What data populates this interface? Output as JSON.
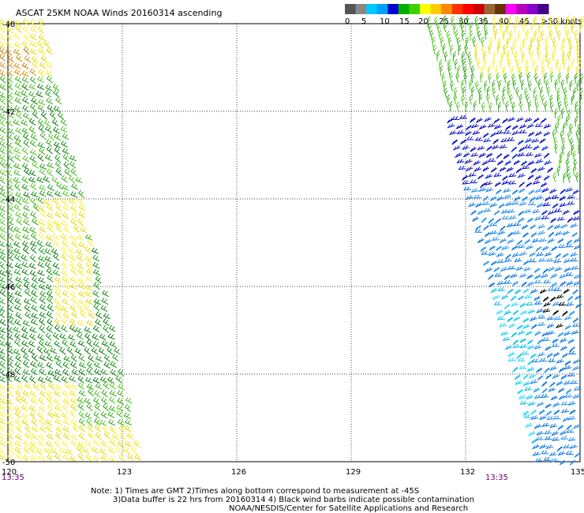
{
  "title": "ASCAT 25KM NOAA Winds 20160314 ascending",
  "legend": {
    "labels": [
      "0",
      "5",
      "10",
      "15",
      "20",
      "25",
      "30",
      "35",
      "40",
      "45",
      ">50 knots"
    ],
    "colors": [
      "#555555",
      "#888888",
      "#00c8ff",
      "#00a0ff",
      "#0000d0",
      "#00b000",
      "#40d000",
      "#ffff00",
      "#ffcc00",
      "#ff8800",
      "#ff3300",
      "#ff0000",
      "#cc0000",
      "#996633",
      "#663300",
      "#ff00ff",
      "#bb00bb",
      "#8800cc",
      "#440088"
    ]
  },
  "axes": {
    "lat_labels": [
      "-40",
      "-42",
      "-44",
      "-46",
      "-48",
      "-50"
    ],
    "lon_labels": [
      "120",
      "123",
      "126",
      "129",
      "132",
      "135"
    ],
    "lat_range": [
      -50,
      -40
    ],
    "lon_range": [
      120,
      135
    ]
  },
  "times": [
    "13:35",
    "13:35"
  ],
  "notes": [
    "Note: 1) Times are GMT 2)Times along bottom correspond to measurement at -45S",
    "3)Data buffer is 22 hrs from 20160314 4) Black wind barbs indicate possible contamination",
    "NOAA/NESDIS/Center for Satellite Applications and Research"
  ],
  "swaths": {
    "west": {
      "lon_range_top": [
        120,
        121.0
      ],
      "lon_range_bottom": [
        120,
        123.6
      ],
      "barb_color_bands": [
        "yellow",
        "orange",
        "green",
        "darkgreen",
        "yellow"
      ]
    },
    "east": {
      "lon_range_top": [
        131.0,
        135
      ],
      "lon_range_bottom": [
        134.0,
        135
      ],
      "barb_color_bands": [
        "yellow",
        "green",
        "blue",
        "lightblue",
        "cyan"
      ]
    }
  }
}
